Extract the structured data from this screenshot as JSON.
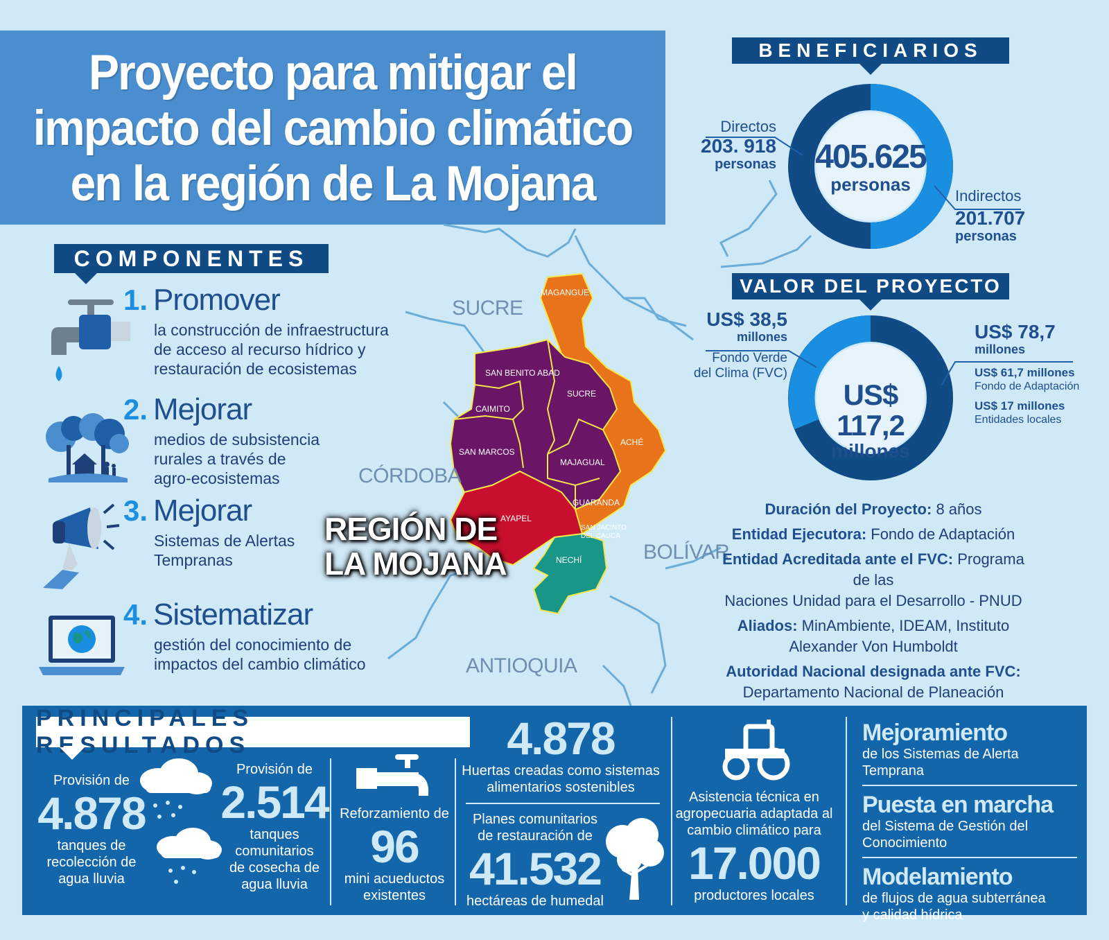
{
  "title": {
    "lines": [
      "Proyecto para mitigar el",
      "impacto del cambio climático",
      "en la región de La Mojana"
    ]
  },
  "componentes": {
    "heading": "COMPONENTES",
    "items": [
      {
        "num": "1.",
        "head": "Promover",
        "desc": [
          "la construcción de infraestructura",
          "de acceso al recurso hídrico y",
          "restauración de ecosistemas"
        ],
        "icon": "faucet-icon"
      },
      {
        "num": "2.",
        "head": "Mejorar",
        "desc": [
          "medios de subsistencia",
          "rurales a través de",
          "agro-ecosistemas"
        ],
        "icon": "trees-house-icon"
      },
      {
        "num": "3.",
        "head": "Mejorar",
        "desc": [
          "Sistemas de Alertas",
          "Tempranas"
        ],
        "icon": "megaphone-icon"
      },
      {
        "num": "4.",
        "head": "Sistematizar",
        "desc": [
          "gestión del conocimiento de",
          "impactos del cambio climático"
        ],
        "icon": "laptop-globe-icon"
      }
    ]
  },
  "map": {
    "departments": {
      "sucre": "SUCRE",
      "cordoba": "CÓRDOBA",
      "bolivar": "BOLÍVAR",
      "antioquia": "ANTIOQUIA"
    },
    "region_label": [
      "REGIÓN DE",
      "LA MOJANA"
    ],
    "municipalities": {
      "magangue": "MAGANGUE",
      "san_benito": "SAN BENITO ABAD",
      "caimito": "CAIMITO",
      "sucre": "SUCRE",
      "san_marcos": "SAN MARCOS",
      "ache": "ACHÉ",
      "majagual": "MAJAGUAL",
      "guaranda": "GUARANDA",
      "ayapel": "AYAPEL",
      "san_jacinto_1": "SAN JACINTO",
      "san_jacinto_2": "DEL CAUCA",
      "nechi": "NECHÍ"
    },
    "colors": {
      "purple": "#6b1566",
      "orange": "#e8731a",
      "red": "#c8102e",
      "teal": "#1a9688",
      "river": "#6aaed8"
    }
  },
  "beneficiarios": {
    "heading": "BENEFICIARIOS",
    "total": "405.625",
    "total_unit": "personas",
    "directos_label": "Directos",
    "directos_value": "203. 918",
    "directos_unit": "personas",
    "indirectos_label": "Indirectos",
    "indirectos_value": "201.707",
    "indirectos_unit": "personas",
    "colors": {
      "dark": "#104b86",
      "light": "#1a8ee0"
    }
  },
  "valor": {
    "heading": "VALOR DEL PROYECTO",
    "total": "US$ 117,2",
    "total_unit": "millones",
    "fvc_value": "US$ 38,5",
    "fvc_unit": "millones",
    "fvc_label": [
      "Fondo Verde",
      "del Clima (FVC)"
    ],
    "other_value": "US$ 78,7",
    "other_unit": "millones",
    "fa_value": "US$ 61,7 millones",
    "fa_label": "Fondo de  Adaptación",
    "el_value": "US$ 17 millones",
    "el_label": "Entidades locales"
  },
  "info": {
    "duracion_label": "Duración del Proyecto:",
    "duracion_value": " 8 años",
    "entidad_label": "Entidad Ejecutora:",
    "entidad_value": " Fondo de Adaptación",
    "acreditada_label": "Entidad Acreditada ante el FVC:",
    "acreditada_value": " Programa de las",
    "acreditada_value2": "Naciones Unidad para el Desarrollo - PNUD",
    "aliados_label": "Aliados:",
    "aliados_value": " MinAmbiente, IDEAM, Instituto",
    "aliados_value2": "Alexander Von Humboldt",
    "autoridad_label": "Autoridad Nacional designada ante FVC:",
    "autoridad_value": "Departamento Nacional de Planeación"
  },
  "resultados": {
    "heading": "PRINCIPALES RESULTADOS",
    "tanques1": {
      "pre": "Provisión de",
      "value": "4.878",
      "post": [
        "tanques de",
        "recolección de",
        "agua lluvia"
      ]
    },
    "tanques2": {
      "pre": "Provisión de",
      "value": "2.514",
      "post": [
        "tanques",
        "comunitarios",
        "de cosecha de",
        "agua lluvia"
      ]
    },
    "acueductos": {
      "pre": "Reforzamiento de",
      "value": "96",
      "post": [
        "mini acueductos",
        "existentes"
      ]
    },
    "huertas": {
      "value": "4.878",
      "post": [
        "Huertas creadas como sistemas",
        "alimentarios sostenibles"
      ]
    },
    "humedal": {
      "pre": [
        "Planes comunitarios",
        "de restauración de"
      ],
      "value": "41.532",
      "post": "hectáreas de humedal"
    },
    "asistencia": {
      "pre": [
        "Asistencia técnica en",
        "agropecuaria adaptada al",
        "cambio climático para"
      ],
      "value": "17.000",
      "post": "productores locales"
    },
    "right": [
      {
        "head": "Mejoramiento",
        "sub": [
          "de los Sistemas de Alerta Temprana"
        ]
      },
      {
        "head": "Puesta en marcha",
        "sub": [
          "del Sistema de Gestión del",
          "Conocimiento"
        ]
      },
      {
        "head": "Modelamiento",
        "sub": [
          "de flujos de agua subterránea",
          "y calidad hídrica"
        ]
      }
    ]
  }
}
